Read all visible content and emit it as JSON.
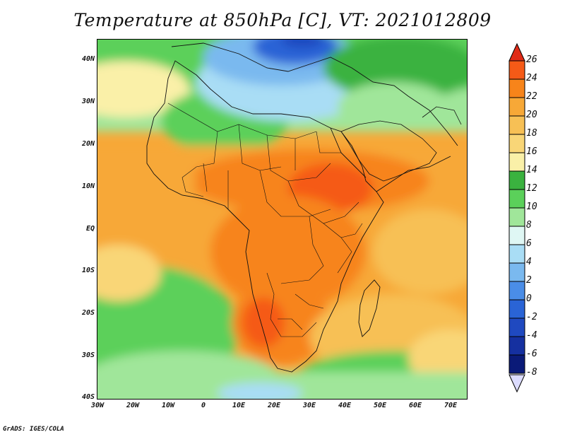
{
  "title": "Temperature at 850hPa [C], VT: 2021012809",
  "credit": "GrADS: IGES/COLA",
  "y_axis": {
    "ticks": [
      "40N",
      "30N",
      "20N",
      "10N",
      "EQ",
      "10S",
      "20S",
      "30S",
      "40S"
    ],
    "values": [
      40,
      30,
      20,
      10,
      0,
      -10,
      -20,
      -30,
      -40
    ]
  },
  "x_axis": {
    "ticks": [
      "30W",
      "20W",
      "10W",
      "0",
      "10E",
      "20E",
      "30E",
      "40E",
      "50E",
      "60E",
      "70E"
    ],
    "values": [
      -30,
      -20,
      -10,
      0,
      10,
      20,
      30,
      40,
      50,
      60,
      70
    ]
  },
  "extent": {
    "lon_min": -30,
    "lon_max": 75,
    "lat_min": -40,
    "lat_max": 45
  },
  "colorbar": {
    "labels": [
      "26",
      "24",
      "22",
      "20",
      "18",
      "16",
      "14",
      "12",
      "10",
      "8",
      "6",
      "4",
      "2",
      "0",
      "-2",
      "-4",
      "-6",
      "-8"
    ],
    "colors": [
      "#e02b17",
      "#f55a17",
      "#f7841a",
      "#f7a837",
      "#f7c055",
      "#f9d677",
      "#faf0a8",
      "#3ab23f",
      "#5bd05a",
      "#a0e69a",
      "#dff7f4",
      "#a9ddf5",
      "#7ab9ef",
      "#4a8de7",
      "#2a64d6",
      "#1f49c0",
      "#1530a0",
      "#0a1a78"
    ]
  },
  "chart_data": {
    "type": "heatmap",
    "title": "Temperature at 850hPa [C], VT: 2021012809",
    "variable": "Temperature at 850hPa",
    "units": "C",
    "valid_time": "2021012809",
    "x_range": [
      -30,
      75
    ],
    "y_range": [
      -40,
      45
    ],
    "levels": [
      -8,
      -6,
      -4,
      -2,
      0,
      2,
      4,
      6,
      8,
      10,
      12,
      14,
      16,
      18,
      20,
      22,
      24,
      26
    ]
  }
}
